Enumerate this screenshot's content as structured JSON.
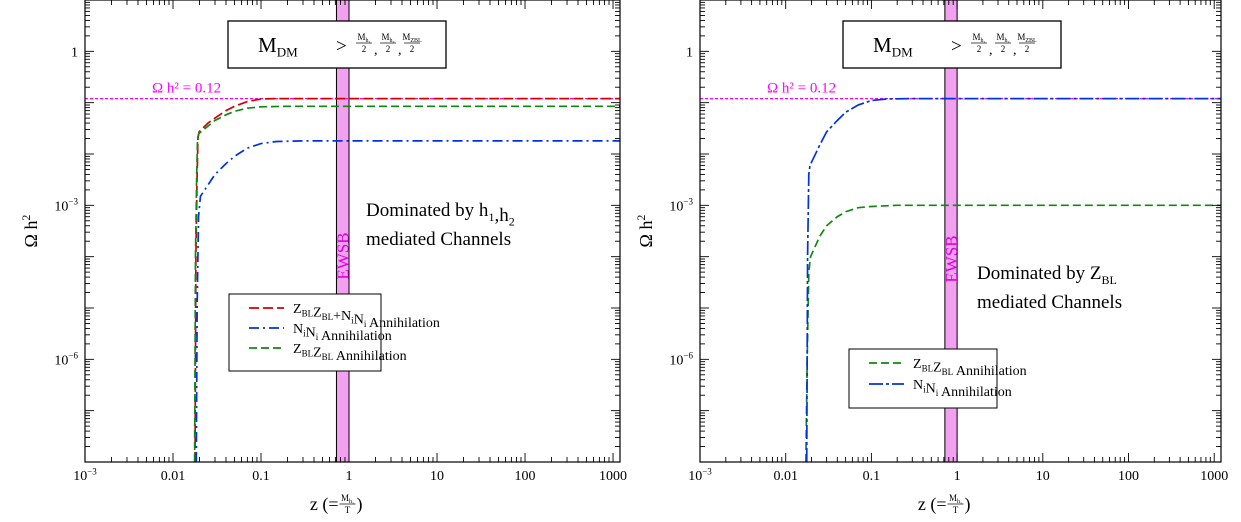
{
  "chart_data": [
    {
      "type": "line",
      "x_scale": "log",
      "y_scale": "log",
      "xlim": [
        0.001,
        1200
      ],
      "ylim": [
        1e-08,
        10
      ],
      "xlabel": {
        "main": "z (=",
        "frac_num": "M",
        "frac_num_sub": "h₁",
        "frac_den": "T",
        "close": ")"
      },
      "ylabel": {
        "main": "Ω h",
        "sup": "2"
      },
      "x_ticks": [
        {
          "value": 0.001,
          "label": "10",
          "sup": "−3"
        },
        {
          "value": 0.01,
          "label": "0.01",
          "sup": ""
        },
        {
          "value": 0.1,
          "label": "0.1",
          "sup": ""
        },
        {
          "value": 1,
          "label": "1",
          "sup": ""
        },
        {
          "value": 10,
          "label": "10",
          "sup": ""
        },
        {
          "value": 100,
          "label": "100",
          "sup": ""
        },
        {
          "value": 1000,
          "label": "1000",
          "sup": ""
        }
      ],
      "y_ticks": [
        {
          "value": 1,
          "label": "1",
          "sup": ""
        },
        {
          "value": 0.001,
          "label": "10",
          "sup": "−3"
        },
        {
          "value": 1e-06,
          "label": "10",
          "sup": "−6"
        }
      ],
      "condition_box": {
        "main": "M",
        "main_sub": "DM",
        "gt": ">",
        "fracs": [
          {
            "num": "M",
            "num_sub": "h₁",
            "den": "2"
          },
          {
            "num": "M",
            "num_sub": "h₂",
            "den": "2"
          },
          {
            "num": "M",
            "num_sub": "Z_BL",
            "den": "2"
          }
        ],
        "sep": ","
      },
      "reference_line": {
        "y": 0.12,
        "label": "Ω h² = 0.12",
        "color": "#ff00ff"
      },
      "band": {
        "x_from": 0.72,
        "x_to": 1.0,
        "label": "EWSB",
        "fill": "#f2a0f0",
        "text_color": "#e000e0"
      },
      "annotation": {
        "lines": [
          [
            {
              "t": "Dominated by h"
            },
            {
              "t": "1",
              "sub": true
            },
            {
              "t": ",h"
            },
            {
              "t": "2",
              "sub": true
            }
          ],
          [
            {
              "t": "mediated Channels"
            }
          ]
        ]
      },
      "series": [
        {
          "name_parts": [
            {
              "t": "Z"
            },
            {
              "t": "BL",
              "sub": true
            },
            {
              "t": "Z"
            },
            {
              "t": "BL",
              "sub": true
            },
            {
              "t": "+N"
            },
            {
              "t": "i",
              "sub": true
            },
            {
              "t": "N"
            },
            {
              "t": "i",
              "sub": true
            },
            {
              "t": " Annihilation"
            }
          ],
          "color": "#d40000",
          "dash": "10,4",
          "points": [
            [
              0.0178,
              1e-08
            ],
            [
              0.0182,
              0.0001
            ],
            [
              0.0188,
              0.004
            ],
            [
              0.0192,
              0.02
            ],
            [
              0.0198,
              0.027
            ],
            [
              0.025,
              0.04
            ],
            [
              0.03,
              0.05
            ],
            [
              0.04,
              0.07
            ],
            [
              0.05,
              0.085
            ],
            [
              0.07,
              0.105
            ],
            [
              0.1,
              0.118
            ],
            [
              0.15,
              0.12
            ],
            [
              1200,
              0.12
            ]
          ]
        },
        {
          "name_parts": [
            {
              "t": "N"
            },
            {
              "t": "i",
              "sub": true
            },
            {
              "t": "N"
            },
            {
              "t": "i",
              "sub": true
            },
            {
              "t": " Annihilation"
            }
          ],
          "color": "#0033dd",
          "dash": "10,4,2,4",
          "points": [
            [
              0.0184,
              1e-08
            ],
            [
              0.0188,
              1e-05
            ],
            [
              0.0195,
              0.0006
            ],
            [
              0.0205,
              0.0015
            ],
            [
              0.03,
              0.004
            ],
            [
              0.04,
              0.0065
            ],
            [
              0.05,
              0.009
            ],
            [
              0.07,
              0.013
            ],
            [
              0.1,
              0.016
            ],
            [
              0.15,
              0.0175
            ],
            [
              0.3,
              0.018
            ],
            [
              1200,
              0.018
            ]
          ]
        },
        {
          "name_parts": [
            {
              "t": "Z"
            },
            {
              "t": "BL",
              "sub": true
            },
            {
              "t": "Z"
            },
            {
              "t": "BL",
              "sub": true
            },
            {
              "t": " Annihilation"
            }
          ],
          "color": "#118811",
          "dash": "8,4",
          "points": [
            [
              0.0176,
              1e-08
            ],
            [
              0.018,
              0.0001
            ],
            [
              0.0186,
              0.004
            ],
            [
              0.019,
              0.02
            ],
            [
              0.0196,
              0.025
            ],
            [
              0.025,
              0.035
            ],
            [
              0.03,
              0.045
            ],
            [
              0.04,
              0.058
            ],
            [
              0.05,
              0.068
            ],
            [
              0.07,
              0.078
            ],
            [
              0.1,
              0.083
            ],
            [
              0.2,
              0.085
            ],
            [
              1200,
              0.085
            ]
          ]
        }
      ],
      "legend_placement": "lower-right"
    },
    {
      "type": "line",
      "x_scale": "log",
      "y_scale": "log",
      "xlim": [
        0.001,
        1200
      ],
      "ylim": [
        1e-08,
        10
      ],
      "xlabel": {
        "main": "z (=",
        "frac_num": "M",
        "frac_num_sub": "h₁",
        "frac_den": "T",
        "close": ")"
      },
      "ylabel": {
        "main": "Ω h",
        "sup": "2"
      },
      "x_ticks": [
        {
          "value": 0.001,
          "label": "10",
          "sup": "−3"
        },
        {
          "value": 0.01,
          "label": "0.01",
          "sup": ""
        },
        {
          "value": 0.1,
          "label": "0.1",
          "sup": ""
        },
        {
          "value": 1,
          "label": "1",
          "sup": ""
        },
        {
          "value": 10,
          "label": "10",
          "sup": ""
        },
        {
          "value": 100,
          "label": "100",
          "sup": ""
        },
        {
          "value": 1000,
          "label": "1000",
          "sup": ""
        }
      ],
      "y_ticks": [
        {
          "value": 1,
          "label": "1",
          "sup": ""
        },
        {
          "value": 0.001,
          "label": "10",
          "sup": "−3"
        },
        {
          "value": 1e-06,
          "label": "10",
          "sup": "−6"
        }
      ],
      "condition_box": {
        "main": "M",
        "main_sub": "DM",
        "gt": ">",
        "fracs": [
          {
            "num": "M",
            "num_sub": "h₁",
            "den": "2"
          },
          {
            "num": "M",
            "num_sub": "h₂",
            "den": "2"
          },
          {
            "num": "M",
            "num_sub": "Z_BL",
            "den": "2"
          }
        ],
        "sep": ","
      },
      "reference_line": {
        "y": 0.12,
        "label": "Ω h² = 0.12",
        "color": "#ff00ff"
      },
      "band": {
        "x_from": 0.72,
        "x_to": 1.0,
        "label": "EWSB",
        "fill": "#f2a0f0",
        "text_color": "#e000e0"
      },
      "annotation": {
        "lines": [
          [
            {
              "t": "Dominated by Z"
            },
            {
              "t": "BL",
              "sub": true
            }
          ],
          [
            {
              "t": "mediated Channels"
            }
          ]
        ]
      },
      "series": [
        {
          "name_parts": [
            {
              "t": "Z"
            },
            {
              "t": "BL",
              "sub": true
            },
            {
              "t": "Z"
            },
            {
              "t": "BL",
              "sub": true
            },
            {
              "t": " Annihilation"
            }
          ],
          "color": "#118811",
          "dash": "8,4",
          "points": [
            [
              0.0172,
              1e-08
            ],
            [
              0.0178,
              1e-06
            ],
            [
              0.0186,
              5e-05
            ],
            [
              0.0195,
              0.0001
            ],
            [
              0.025,
              0.00025
            ],
            [
              0.03,
              0.0004
            ],
            [
              0.04,
              0.0006
            ],
            [
              0.05,
              0.00075
            ],
            [
              0.07,
              0.0009
            ],
            [
              0.1,
              0.00095
            ],
            [
              0.2,
              0.001
            ],
            [
              1200,
              0.001
            ]
          ]
        },
        {
          "name_parts": [
            {
              "t": "N"
            },
            {
              "t": "i",
              "sub": true
            },
            {
              "t": "N"
            },
            {
              "t": "i",
              "sub": true
            },
            {
              "t": " Annihilation"
            }
          ],
          "color": "#0033dd",
          "dash": "14,3,3,3",
          "points": [
            [
              0.0176,
              1e-08
            ],
            [
              0.018,
              0.0001
            ],
            [
              0.0186,
              0.004
            ],
            [
              0.0192,
              0.006
            ],
            [
              0.025,
              0.015
            ],
            [
              0.03,
              0.027
            ],
            [
              0.04,
              0.045
            ],
            [
              0.05,
              0.065
            ],
            [
              0.07,
              0.09
            ],
            [
              0.1,
              0.11
            ],
            [
              0.15,
              0.118
            ],
            [
              0.3,
              0.12
            ],
            [
              1200,
              0.12
            ]
          ]
        }
      ],
      "legend_placement": "lower-right"
    }
  ]
}
